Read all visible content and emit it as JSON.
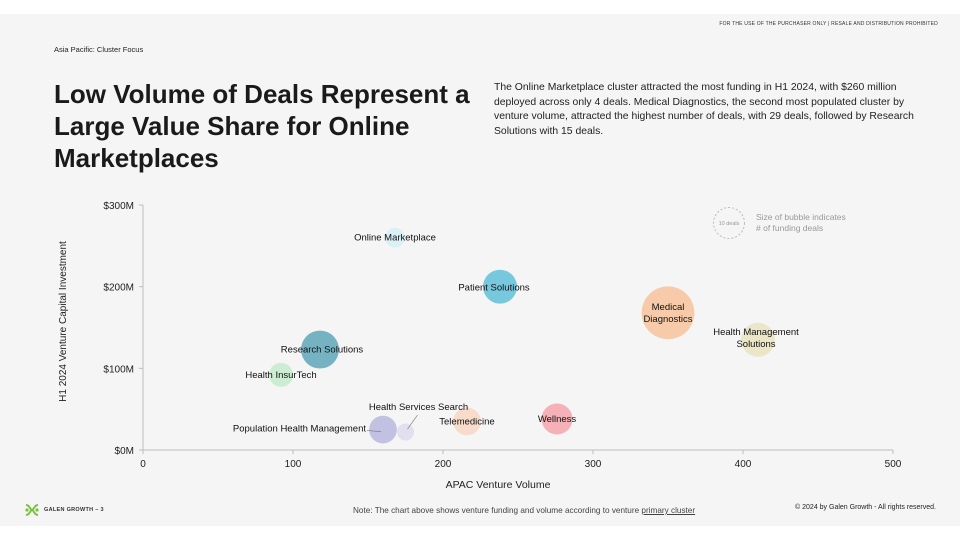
{
  "header": {
    "disclaimer": "FOR THE USE OF THE PURCHASER ONLY | RESALE AND DISTRIBUTION PROHIBITED",
    "section": "Asia Pacific: Cluster Focus",
    "headline": "Low Volume of Deals Represent a Large Value Share for Online Marketplaces",
    "summary": "The Online Marketplace cluster attracted the most funding in H1 2024, with $260 million deployed across only 4 deals. Medical Diagnostics, the second most populated cluster by venture volume, attracted the highest number of deals, with 29 deals, followed by Research Solutions with 15 deals."
  },
  "chart_data": {
    "type": "scatter",
    "title": "",
    "xlabel": "APAC Venture Volume",
    "ylabel": "H1 2024 Venture Capital Investment",
    "xlim": [
      0,
      500
    ],
    "ylim": [
      0,
      300
    ],
    "x_ticks": [
      "0",
      "100",
      "200",
      "300",
      "400",
      "500"
    ],
    "y_ticks": [
      "$0M",
      "$100M",
      "$200M",
      "$300M"
    ],
    "grid": false,
    "legend": {
      "position": "top-right",
      "bubble_label": "10 deals",
      "bubble_value": 10,
      "text_line1": "Size of bubble indicates",
      "text_line2": "# of funding deals"
    },
    "points": [
      {
        "label": "Online Marketplace",
        "x": 168,
        "y": 260,
        "deals": 4,
        "color": "#d4eef5"
      },
      {
        "label": "Patient Solutions",
        "x": 238,
        "y": 200,
        "deals": 12,
        "color": "#62bfd8"
      },
      {
        "label": "Medical Diagnostics",
        "x": 350,
        "y": 168,
        "deals": 29,
        "color": "#f7c39c"
      },
      {
        "label": "Health Management Solutions",
        "x": 410,
        "y": 135,
        "deals": 12,
        "color": "#e7e3be"
      },
      {
        "label": "Research Solutions",
        "x": 118,
        "y": 123,
        "deals": 15,
        "color": "#5ea7ba"
      },
      {
        "label": "Health InsurTech",
        "x": 92,
        "y": 92,
        "deals": 6,
        "color": "#c5ebcb"
      },
      {
        "label": "Telemedicine",
        "x": 216,
        "y": 35,
        "deals": 8,
        "color": "#f7d7c3"
      },
      {
        "label": "Wellness",
        "x": 276,
        "y": 38,
        "deals": 10,
        "color": "#f3a4ab"
      },
      {
        "label": "Population Health Management",
        "x": 160,
        "y": 25,
        "deals": 8,
        "color": "#b8b7dd"
      },
      {
        "label": "Health Services Search",
        "x": 175,
        "y": 22,
        "deals": 3,
        "color": "#dcdcec"
      }
    ]
  },
  "footer": {
    "note_prefix": "Note: The chart above shows venture funding and volume according to venture ",
    "note_link": "primary cluster",
    "copyright": "© 2024 by Galen Growth  - All rights reserved.",
    "brand": "GALEN GROWTH – 3"
  },
  "colors": {
    "brand_green": "#7cc242",
    "brand_teal": "#5ea7ba"
  }
}
